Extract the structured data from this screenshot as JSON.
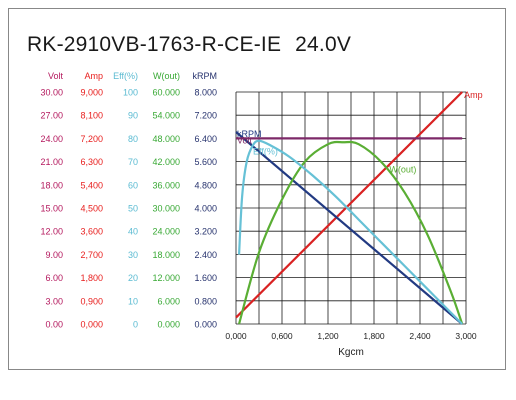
{
  "chart_data": {
    "type": "line",
    "title": "RK-2910VB-1763-R-CE-IE",
    "title_voltage": "24.0V",
    "xlabel": "Kgcm",
    "xlim": [
      0,
      3.0
    ],
    "x_ticks": [
      0,
      0.6,
      1.2,
      1.8,
      2.4,
      3.0
    ],
    "x_tick_labels": [
      "0,000",
      "0,600",
      "1,200",
      "1,800",
      "2,400",
      "3,000"
    ],
    "grid": true,
    "axes": [
      {
        "key": "volt",
        "header": "Volt",
        "color": "#b4195e",
        "max": 30,
        "ticks": [
          "30.00",
          "27.00",
          "24.00",
          "21.00",
          "18.00",
          "15.00",
          "12.00",
          "9.00",
          "6.00",
          "3.00",
          "0.00"
        ]
      },
      {
        "key": "amp",
        "header": "Amp",
        "color": "#e8201f",
        "max": 9,
        "ticks": [
          "9,000",
          "8,100",
          "7,200",
          "6,300",
          "5,400",
          "4,500",
          "3,600",
          "2,700",
          "1,800",
          "0,900",
          "0,000"
        ]
      },
      {
        "key": "eff",
        "header": "Eff(%)",
        "color": "#5bbbd2",
        "max": 100,
        "ticks": [
          "100",
          "90",
          "80",
          "70",
          "60",
          "50",
          "40",
          "30",
          "20",
          "10",
          "0"
        ]
      },
      {
        "key": "wout",
        "header": "W(out)",
        "color": "#39a935",
        "max": 60,
        "ticks": [
          "60.000",
          "54.000",
          "48.000",
          "42.000",
          "36.000",
          "30.000",
          "24.000",
          "18.000",
          "12.000",
          "6.000",
          "0.000"
        ]
      },
      {
        "key": "krpm",
        "header": "kRPM",
        "color": "#27336e",
        "max": 8,
        "ticks": [
          "8.000",
          "7.200",
          "6.400",
          "5.600",
          "4.800",
          "4.000",
          "3.200",
          "2.400",
          "1.600",
          "0.800",
          "0.000"
        ]
      }
    ],
    "series": [
      {
        "name": "Amp",
        "axis": "amp",
        "color": "#d92222",
        "label_pos": "end",
        "x": [
          0,
          2.95
        ],
        "y": [
          0.25,
          9.0
        ]
      },
      {
        "name": "kRPM",
        "axis": "krpm",
        "color": "#223a82",
        "label_pos": "start",
        "x": [
          0,
          2.95
        ],
        "y": [
          6.62,
          0
        ]
      },
      {
        "name": "Volt",
        "axis": "volt",
        "color": "#7d2968",
        "label_pos": "start",
        "x": [
          0,
          2.95
        ],
        "y": [
          24.0,
          24.0
        ]
      },
      {
        "name": "W(out)",
        "axis": "wout",
        "color": "#5aae34",
        "label_pos": "mid",
        "x": [
          0.04,
          0.3,
          0.6,
          0.9,
          1.2,
          1.4,
          1.6,
          1.9,
          2.2,
          2.5,
          2.8,
          2.95
        ],
        "y": [
          0,
          18.5,
          32.2,
          42.0,
          46.5,
          47.0,
          46.5,
          41.8,
          34.0,
          23.0,
          8.5,
          0
        ]
      },
      {
        "name": "Eff(%)",
        "axis": "eff",
        "color": "#66c1d6",
        "label_pos": "peak",
        "x": [
          0.04,
          0.08,
          0.14,
          0.22,
          0.3,
          0.45,
          0.7,
          1.0,
          1.3,
          1.6,
          1.9,
          2.2,
          2.5,
          2.8,
          2.95
        ],
        "y": [
          30,
          55,
          70,
          77,
          79,
          77,
          72,
          64,
          55,
          45,
          35,
          25,
          15,
          5,
          0
        ]
      }
    ]
  }
}
